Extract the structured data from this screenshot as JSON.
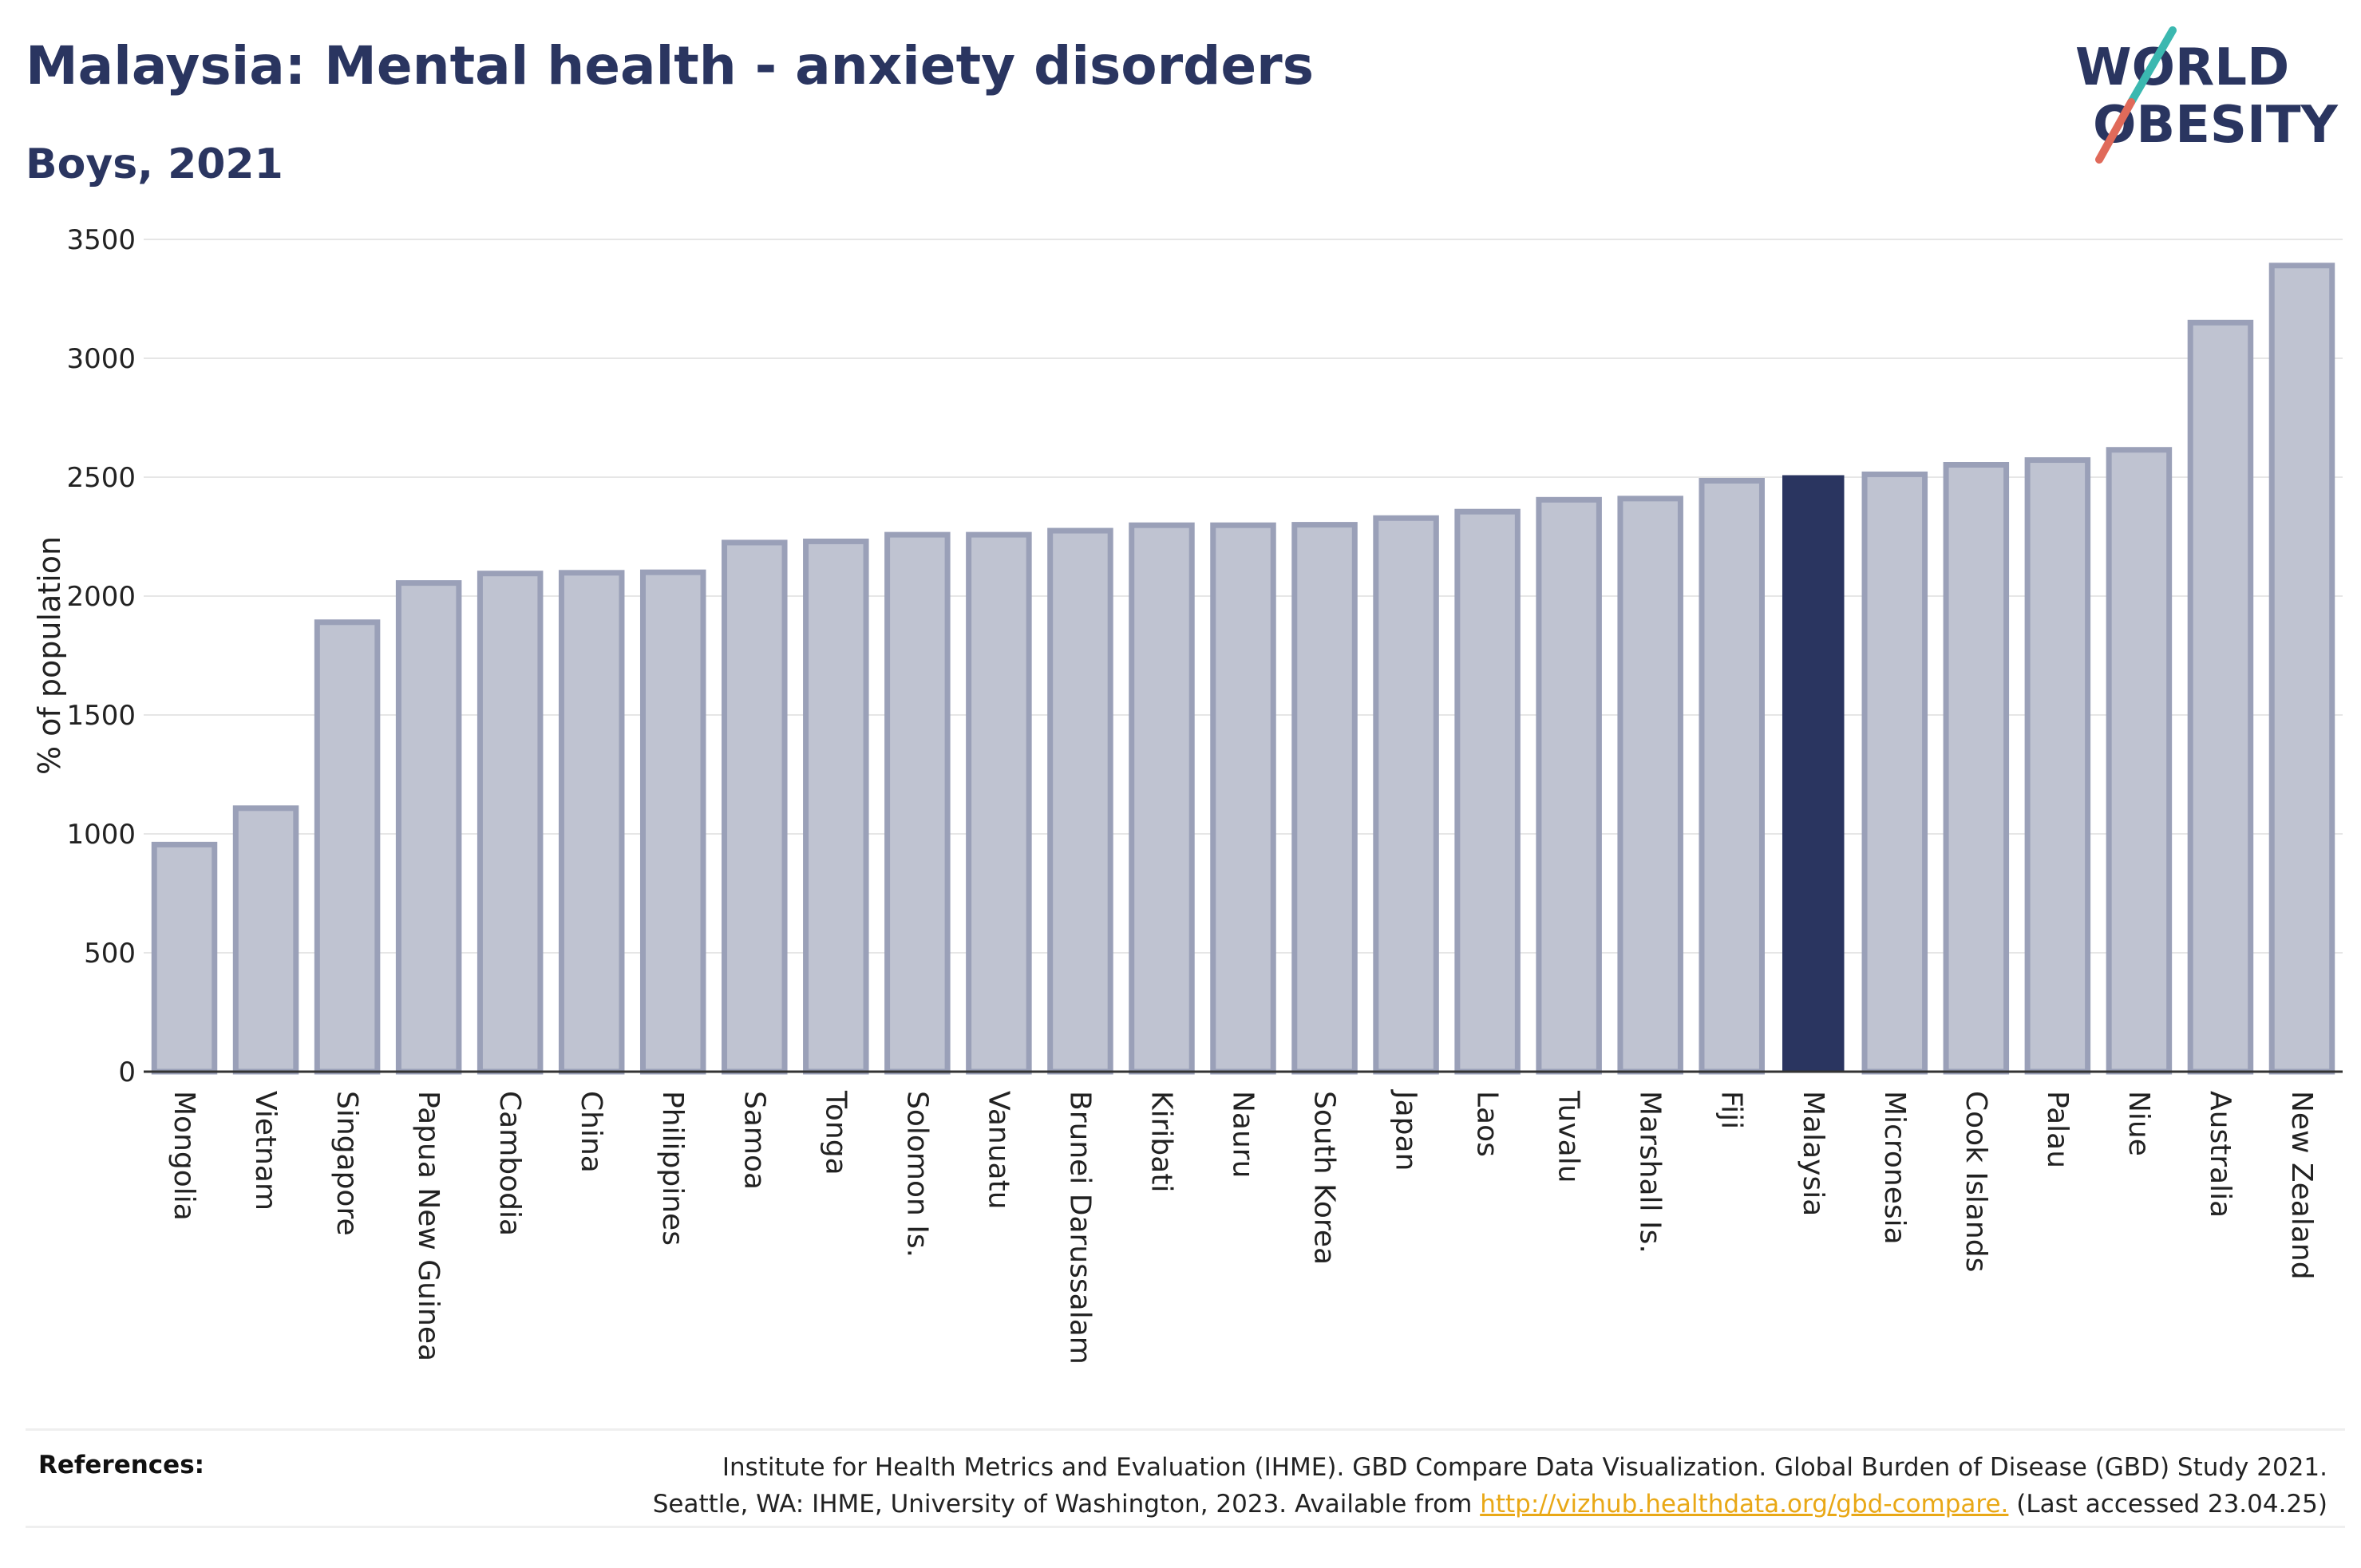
{
  "header": {
    "title": "Malaysia: Mental health - anxiety disorders",
    "subtitle": "Boys, 2021"
  },
  "logo": {
    "line1": "WORLD",
    "line2": "OBESITY"
  },
  "colors": {
    "highlight": "#2a3560",
    "bar": "#bfc3d1",
    "bar_border": "#9aa0b8",
    "grid": "#e6e6e6",
    "axis": "#333333"
  },
  "chart_data": {
    "type": "bar",
    "title": "Malaysia: Mental health - anxiety disorders",
    "subtitle": "Boys, 2021",
    "ylabel": "% of population",
    "ylim": [
      0,
      3500
    ],
    "yticks": [
      0,
      500,
      1000,
      1500,
      2000,
      2500,
      3000,
      3500
    ],
    "grid": true,
    "highlight": "Malaysia",
    "categories": [
      "Mongolia",
      "Vietnam",
      "Singapore",
      "Papua New Guinea",
      "Cambodia",
      "China",
      "Philippines",
      "Samoa",
      "Tonga",
      "Solomon Is.",
      "Vanuatu",
      "Brunei Darussalam",
      "Kiribati",
      "Nauru",
      "South Korea",
      "Japan",
      "Laos",
      "Tuvalu",
      "Marshall Is.",
      "Fiji",
      "Malaysia",
      "Micronesia",
      "Cook Islands",
      "Palau",
      "Niue",
      "Australia",
      "New Zealand"
    ],
    "values": [
      955,
      1108,
      1890,
      2055,
      2095,
      2098,
      2100,
      2225,
      2230,
      2258,
      2258,
      2275,
      2298,
      2298,
      2300,
      2328,
      2355,
      2405,
      2410,
      2485,
      2505,
      2512,
      2552,
      2572,
      2615,
      3150,
      3390
    ]
  },
  "references": {
    "label": "References:",
    "line1": "Institute for Health Metrics and Evaluation (IHME). GBD Compare Data Visualization. Global Burden of Disease (GBD) Study 2021.",
    "line2_prefix": "Seattle, WA: IHME, University of Washington, 2023. Available from ",
    "link": "http://vizhub.healthdata.org/gbd-compare.",
    "line2_suffix": " (Last accessed 23.04.25)"
  }
}
